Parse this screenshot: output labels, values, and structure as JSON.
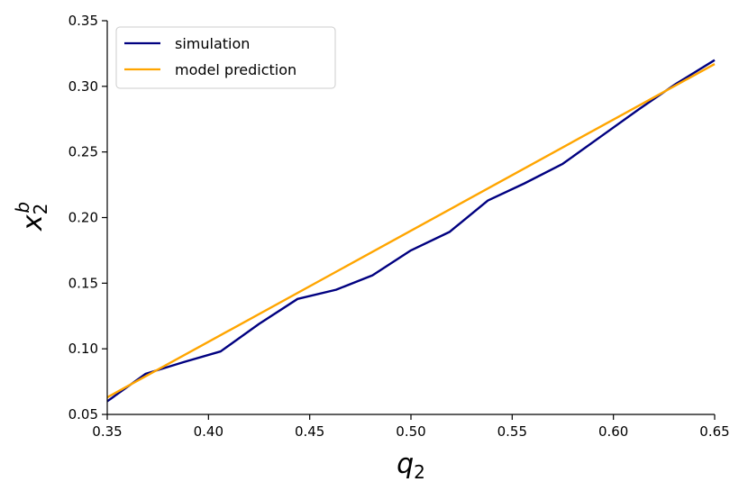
{
  "chart_data": {
    "type": "line",
    "title": "",
    "xlabel": "q",
    "xlabel_sub": "2",
    "ylabel": "x",
    "ylabel_sub": "2",
    "ylabel_sup": "b",
    "xlim": [
      0.35,
      0.65
    ],
    "ylim": [
      0.05,
      0.35
    ],
    "xticks": [
      "0.35",
      "0.40",
      "0.45",
      "0.50",
      "0.55",
      "0.60",
      "0.65"
    ],
    "yticks": [
      "0.05",
      "0.10",
      "0.15",
      "0.20",
      "0.25",
      "0.30",
      "0.35"
    ],
    "grid": false,
    "legend_position": "top-left",
    "series": [
      {
        "name": "simulation",
        "color": "#000080",
        "x": [
          0.35,
          0.369,
          0.388,
          0.406,
          0.425,
          0.444,
          0.463,
          0.481,
          0.5,
          0.519,
          0.538,
          0.556,
          0.575,
          0.594,
          0.613,
          0.631,
          0.65
        ],
        "y": [
          0.06,
          0.081,
          0.09,
          0.098,
          0.119,
          0.138,
          0.145,
          0.156,
          0.175,
          0.189,
          0.213,
          0.226,
          0.241,
          0.262,
          0.283,
          0.302,
          0.32
        ]
      },
      {
        "name": "model prediction",
        "color": "#FFA500",
        "x": [
          0.35,
          0.65
        ],
        "y": [
          0.063,
          0.317
        ]
      }
    ]
  }
}
